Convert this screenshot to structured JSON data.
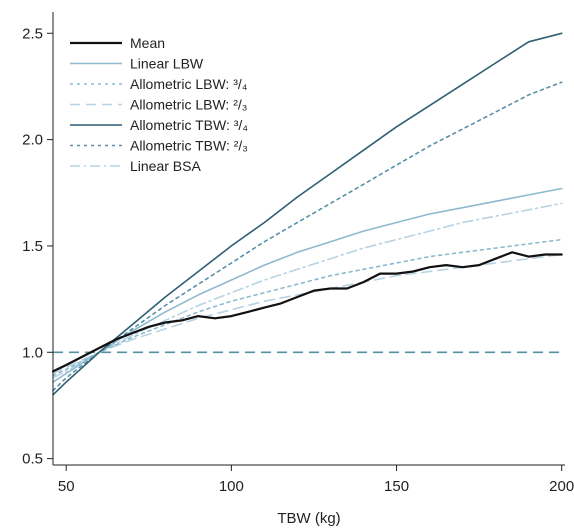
{
  "chart_data": {
    "type": "line",
    "title": "",
    "xlabel": "TBW (kg)",
    "ylabel": "",
    "xlim": [
      46,
      201
    ],
    "ylim": [
      0.47,
      2.6
    ],
    "xticks": [
      50,
      100,
      150,
      200
    ],
    "xtick_labels": [
      "50",
      "100",
      "150",
      "200"
    ],
    "yticks": [
      0.5,
      1.0,
      1.5,
      2.0,
      2.5
    ],
    "ytick_labels": [
      "0.5",
      "1.0",
      "1.5",
      "2.0",
      "2.5"
    ],
    "grid": false,
    "legend_position": "top-left",
    "reference_line": {
      "y": 1.0,
      "style": "dashed",
      "color": "#5a8fa8"
    },
    "series": [
      {
        "name": "Mean",
        "color": "#111111",
        "style": "solid",
        "x": [
          46,
          50,
          55,
          60,
          65,
          70,
          75,
          80,
          85,
          90,
          95,
          100,
          105,
          110,
          115,
          120,
          125,
          130,
          135,
          140,
          145,
          150,
          155,
          160,
          165,
          170,
          175,
          180,
          185,
          190,
          195,
          200
        ],
        "y": [
          0.91,
          0.94,
          0.98,
          1.02,
          1.06,
          1.09,
          1.12,
          1.14,
          1.15,
          1.17,
          1.16,
          1.17,
          1.19,
          1.21,
          1.23,
          1.26,
          1.29,
          1.3,
          1.3,
          1.33,
          1.37,
          1.37,
          1.38,
          1.4,
          1.41,
          1.4,
          1.41,
          1.44,
          1.47,
          1.45,
          1.46,
          1.46
        ]
      },
      {
        "name": "Linear LBW",
        "color": "#8fb9cf",
        "style": "solid",
        "x": [
          46,
          50,
          60,
          70,
          80,
          90,
          100,
          110,
          120,
          130,
          140,
          150,
          160,
          170,
          180,
          190,
          200
        ],
        "y": [
          0.86,
          0.9,
          1.0,
          1.1,
          1.19,
          1.27,
          1.34,
          1.41,
          1.47,
          1.52,
          1.57,
          1.61,
          1.65,
          1.68,
          1.71,
          1.74,
          1.77
        ]
      },
      {
        "name": "Allometric LBW: ³/₄",
        "color": "#8fb9cf",
        "style": "dotted",
        "x": [
          46,
          50,
          60,
          70,
          80,
          90,
          100,
          110,
          120,
          130,
          140,
          150,
          160,
          170,
          180,
          190,
          200
        ],
        "y": [
          0.89,
          0.92,
          1.0,
          1.07,
          1.13,
          1.19,
          1.24,
          1.28,
          1.32,
          1.36,
          1.39,
          1.42,
          1.45,
          1.47,
          1.49,
          1.51,
          1.53
        ]
      },
      {
        "name": "Allometric LBW: ²/₃",
        "color": "#b8d3e1",
        "style": "dashed",
        "x": [
          46,
          50,
          60,
          70,
          80,
          90,
          100,
          110,
          120,
          130,
          140,
          150,
          160,
          170,
          180,
          190,
          200
        ],
        "y": [
          0.9,
          0.93,
          1.0,
          1.06,
          1.11,
          1.16,
          1.2,
          1.24,
          1.27,
          1.3,
          1.33,
          1.36,
          1.38,
          1.4,
          1.42,
          1.44,
          1.46
        ]
      },
      {
        "name": "Allometric TBW: ³/₄",
        "color": "#2e5f72",
        "style": "solid",
        "x": [
          46,
          50,
          60,
          70,
          80,
          90,
          100,
          110,
          120,
          130,
          140,
          150,
          160,
          170,
          180,
          190,
          200
        ],
        "y": [
          0.8,
          0.86,
          1.0,
          1.13,
          1.26,
          1.38,
          1.5,
          1.61,
          1.73,
          1.84,
          1.95,
          2.06,
          2.16,
          2.26,
          2.36,
          2.46,
          2.5
        ]
      },
      {
        "name": "Allometric TBW: ²/₃",
        "color": "#5a8fa8",
        "style": "dotted",
        "x": [
          46,
          50,
          60,
          70,
          80,
          90,
          100,
          110,
          120,
          130,
          140,
          150,
          160,
          170,
          180,
          190,
          200
        ],
        "y": [
          0.82,
          0.88,
          1.0,
          1.11,
          1.22,
          1.32,
          1.42,
          1.52,
          1.61,
          1.7,
          1.79,
          1.88,
          1.97,
          2.05,
          2.13,
          2.21,
          2.27
        ]
      },
      {
        "name": "Linear BSA",
        "color": "#b8d3e1",
        "style": "dashdot",
        "x": [
          46,
          50,
          60,
          70,
          80,
          90,
          100,
          110,
          120,
          130,
          140,
          150,
          160,
          170,
          180,
          190,
          200
        ],
        "y": [
          0.88,
          0.91,
          1.0,
          1.08,
          1.15,
          1.22,
          1.28,
          1.34,
          1.39,
          1.44,
          1.49,
          1.53,
          1.57,
          1.61,
          1.64,
          1.67,
          1.7
        ]
      }
    ]
  }
}
